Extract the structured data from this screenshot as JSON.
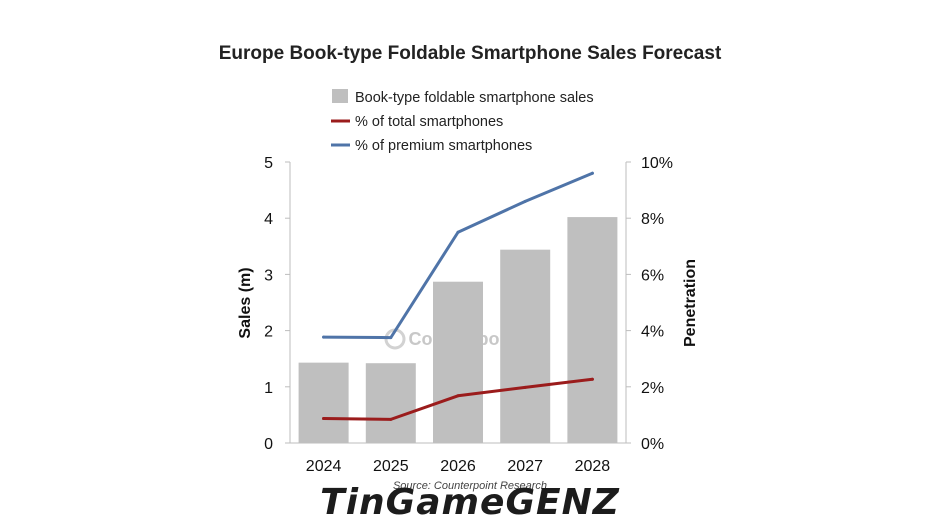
{
  "chart_data": {
    "type": "bar",
    "title": "Europe Book-type Foldable Smartphone Sales Forecast",
    "categories": [
      "2024",
      "2025",
      "2026",
      "2027",
      "2028"
    ],
    "series": [
      {
        "name": "Book-type foldable smartphone sales",
        "type": "bar",
        "axis": "left",
        "color": "#bfbfbf",
        "values": [
          1.43,
          1.42,
          2.87,
          3.44,
          4.02
        ]
      },
      {
        "name": "% of total smartphones",
        "type": "line",
        "axis": "right",
        "color": "#9b1c1c",
        "values": [
          0.87,
          0.84,
          1.68,
          1.98,
          2.27
        ]
      },
      {
        "name": "% of premium smartphones",
        "type": "line",
        "axis": "right",
        "color": "#4f74a8",
        "values": [
          3.77,
          3.75,
          7.5,
          8.6,
          9.6
        ]
      }
    ],
    "ylabel": "Sales (m)",
    "y2label": "Penetration",
    "ylim": [
      0,
      5
    ],
    "y2lim": [
      0,
      10
    ],
    "yticks": [
      "0",
      "1",
      "2",
      "3",
      "4",
      "5"
    ],
    "y2ticks": [
      "0%",
      "2%",
      "4%",
      "6%",
      "8%",
      "10%"
    ],
    "legend_position": "top",
    "grid": false
  },
  "watermark": "Counterpoint",
  "source": "Source: Counterpoint Research",
  "brand": "TinGameGENZ"
}
